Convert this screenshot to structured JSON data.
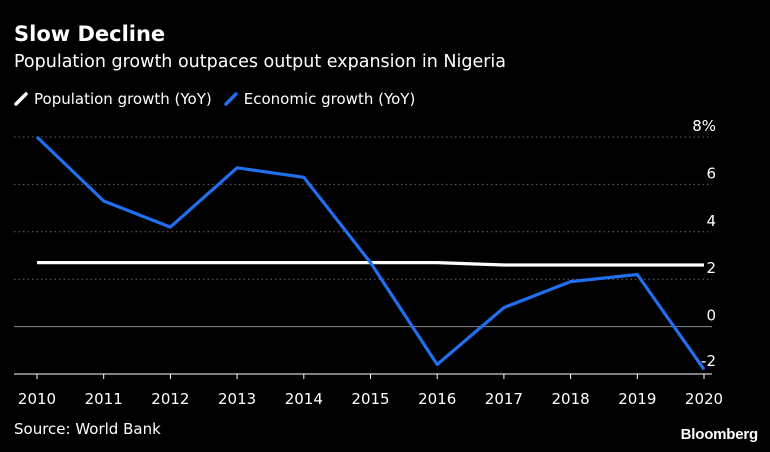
{
  "header": {
    "title": "Slow Decline",
    "subtitle": "Population growth outpaces output expansion in Nigeria"
  },
  "legend": [
    {
      "label": "Population growth (YoY)",
      "color": "#ffffff"
    },
    {
      "label": "Economic growth (YoY)",
      "color": "#1f6fef"
    }
  ],
  "footer": {
    "source": "Source: World Bank",
    "brand": "Bloomberg"
  },
  "chart_data": {
    "type": "line",
    "x": [
      2010,
      2011,
      2012,
      2013,
      2014,
      2015,
      2016,
      2017,
      2018,
      2019,
      2020
    ],
    "x_tick_labels": [
      "2010",
      "2011",
      "2012",
      "2013",
      "2014",
      "2015",
      "2016",
      "2017",
      "2018",
      "2019",
      "2020"
    ],
    "y_tick_labels": [
      "8%",
      "6",
      "4",
      "2",
      "0",
      "-2"
    ],
    "y_ticks": [
      8,
      6,
      4,
      2,
      0,
      -2
    ],
    "ylim": [
      -2,
      8
    ],
    "grid": true,
    "legend_position": "top-left",
    "series": [
      {
        "name": "Population growth (YoY)",
        "color": "#ffffff",
        "values": [
          2.7,
          2.7,
          2.7,
          2.7,
          2.7,
          2.7,
          2.7,
          2.6,
          2.6,
          2.6,
          2.6
        ]
      },
      {
        "name": "Economic growth (YoY)",
        "color": "#1f6fef",
        "values": [
          8.0,
          5.3,
          4.2,
          6.7,
          6.3,
          2.7,
          -1.6,
          0.8,
          1.9,
          2.2,
          -1.8
        ]
      }
    ]
  }
}
